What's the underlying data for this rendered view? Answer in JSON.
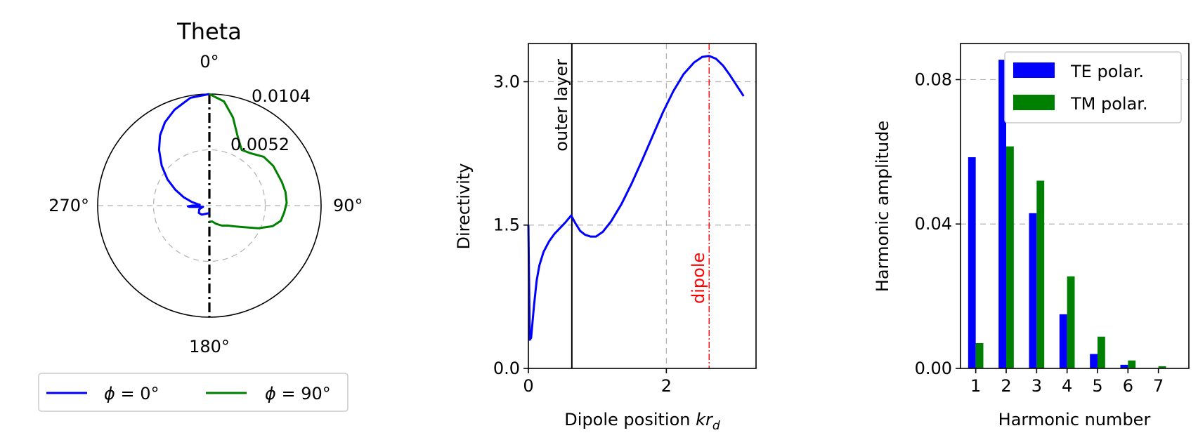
{
  "colors": {
    "blue": "#0000ff",
    "green": "#008000",
    "red": "#ff0000",
    "grid": "#b0b0b0"
  },
  "chart_data": [
    {
      "type": "polar-line",
      "title": "Theta",
      "angle_labels": [
        "0°",
        "90°",
        "180°",
        "270°"
      ],
      "radial_tick_labels": [
        "0.0104",
        "0.0052"
      ],
      "radial_ticks": [
        0.0104,
        0.0052
      ],
      "rmax": 0.0104,
      "legend": [
        "$\\phi = 0°$",
        "$\\phi = 90°$"
      ],
      "legend_display": [
        [
          "ϕ",
          " = 0°"
        ],
        [
          "ϕ",
          " = 90°"
        ]
      ],
      "series": [
        {
          "name": "ϕ = 0°",
          "color": "#0000ff",
          "points_deg_r": [
            [
              0,
              0.0104
            ],
            [
              -10,
              0.0102
            ],
            [
              -20,
              0.0095
            ],
            [
              -28,
              0.0088
            ],
            [
              -35,
              0.008
            ],
            [
              -42,
              0.007
            ],
            [
              -50,
              0.0058
            ],
            [
              -58,
              0.0046
            ],
            [
              -65,
              0.0035
            ],
            [
              -72,
              0.0025
            ],
            [
              -78,
              0.0017
            ],
            [
              -82,
              0.0012
            ],
            [
              -85,
              0.0009
            ],
            [
              -88,
              0.001
            ],
            [
              -90,
              0.0016
            ],
            [
              -92,
              0.002
            ],
            [
              -94,
              0.0018
            ],
            [
              -97,
              0.001
            ],
            [
              -100,
              0.0006
            ],
            [
              -110,
              0.001
            ],
            [
              -125,
              0.0012
            ],
            [
              -140,
              0.0011
            ],
            [
              -160,
              0.0008
            ],
            [
              -180,
              0.0007
            ]
          ]
        },
        {
          "name": "ϕ = 90°",
          "color": "#008000",
          "points_deg_r": [
            [
              0,
              0.0104
            ],
            [
              8,
              0.0098
            ],
            [
              15,
              0.0085
            ],
            [
              22,
              0.007
            ],
            [
              30,
              0.006
            ],
            [
              38,
              0.0062
            ],
            [
              48,
              0.0068
            ],
            [
              58,
              0.007
            ],
            [
              65,
              0.007
            ],
            [
              72,
              0.0071
            ],
            [
              80,
              0.0072
            ],
            [
              88,
              0.0072
            ],
            [
              95,
              0.007
            ],
            [
              102,
              0.0068
            ],
            [
              108,
              0.0062
            ],
            [
              115,
              0.005
            ],
            [
              122,
              0.0038
            ],
            [
              130,
              0.003
            ],
            [
              138,
              0.0025
            ],
            [
              148,
              0.0022
            ],
            [
              160,
              0.0018
            ],
            [
              170,
              0.0015
            ],
            [
              180,
              0.0015
            ]
          ]
        }
      ],
      "reference_line": "vertical dash-dot at 0°/180°"
    },
    {
      "type": "line",
      "title": "",
      "xlabel": "Dipole position kr_d",
      "xlabel_parts": [
        "Dipole position ",
        "kr",
        "d"
      ],
      "ylabel": "Directivity",
      "xlim": [
        0,
        3.3
      ],
      "ylim": [
        0,
        3.4
      ],
      "xticks": [
        0,
        2
      ],
      "yticks": [
        0.0,
        1.5,
        3.0
      ],
      "xtick_labels": [
        "0",
        "2"
      ],
      "ytick_labels": [
        "0.0",
        "1.5",
        "3.0"
      ],
      "series": [
        {
          "name": "",
          "color": "#0000ff",
          "x": [
            0.0,
            0.02,
            0.04,
            0.08,
            0.12,
            0.16,
            0.22,
            0.3,
            0.38,
            0.46,
            0.54,
            0.62,
            0.68,
            0.75,
            0.82,
            0.9,
            0.98,
            1.08,
            1.2,
            1.35,
            1.5,
            1.65,
            1.8,
            1.95,
            2.1,
            2.25,
            2.4,
            2.52,
            2.62,
            2.72,
            2.82,
            2.92,
            3.02,
            3.12
          ],
          "y": [
            1.5,
            0.3,
            0.32,
            0.65,
            0.92,
            1.08,
            1.22,
            1.33,
            1.41,
            1.47,
            1.53,
            1.6,
            1.52,
            1.44,
            1.4,
            1.38,
            1.38,
            1.43,
            1.54,
            1.72,
            1.94,
            2.18,
            2.43,
            2.68,
            2.9,
            3.08,
            3.2,
            3.26,
            3.27,
            3.24,
            3.17,
            3.07,
            2.96,
            2.85
          ]
        }
      ],
      "vlines": [
        {
          "x": 0.63,
          "label": "outer layer",
          "color": "#000000",
          "style": "solid"
        },
        {
          "x": 2.62,
          "label": "dipole",
          "color": "#ff0000",
          "style": "dashdot"
        }
      ],
      "grid": true
    },
    {
      "type": "bar",
      "title": "",
      "xlabel": "Harmonic number",
      "ylabel": "Harmonic amplitude",
      "categories": [
        "1",
        "2",
        "3",
        "4",
        "5",
        "6",
        "7"
      ],
      "xlim": [
        0.5,
        8.0
      ],
      "ylim": [
        0,
        0.09
      ],
      "yticks": [
        0.0,
        0.04,
        0.08
      ],
      "ytick_labels": [
        "0.00",
        "0.04",
        "0.08"
      ],
      "series": [
        {
          "name": "TE polar.",
          "color": "#0000ff",
          "values": [
            0.0585,
            0.0855,
            0.043,
            0.015,
            0.004,
            0.001,
            0.0001
          ]
        },
        {
          "name": "TM polar.",
          "color": "#008000",
          "values": [
            0.007,
            0.0615,
            0.052,
            0.0255,
            0.0088,
            0.0022,
            0.0006
          ]
        }
      ],
      "legend_position": "upper right",
      "grid": "y"
    }
  ]
}
